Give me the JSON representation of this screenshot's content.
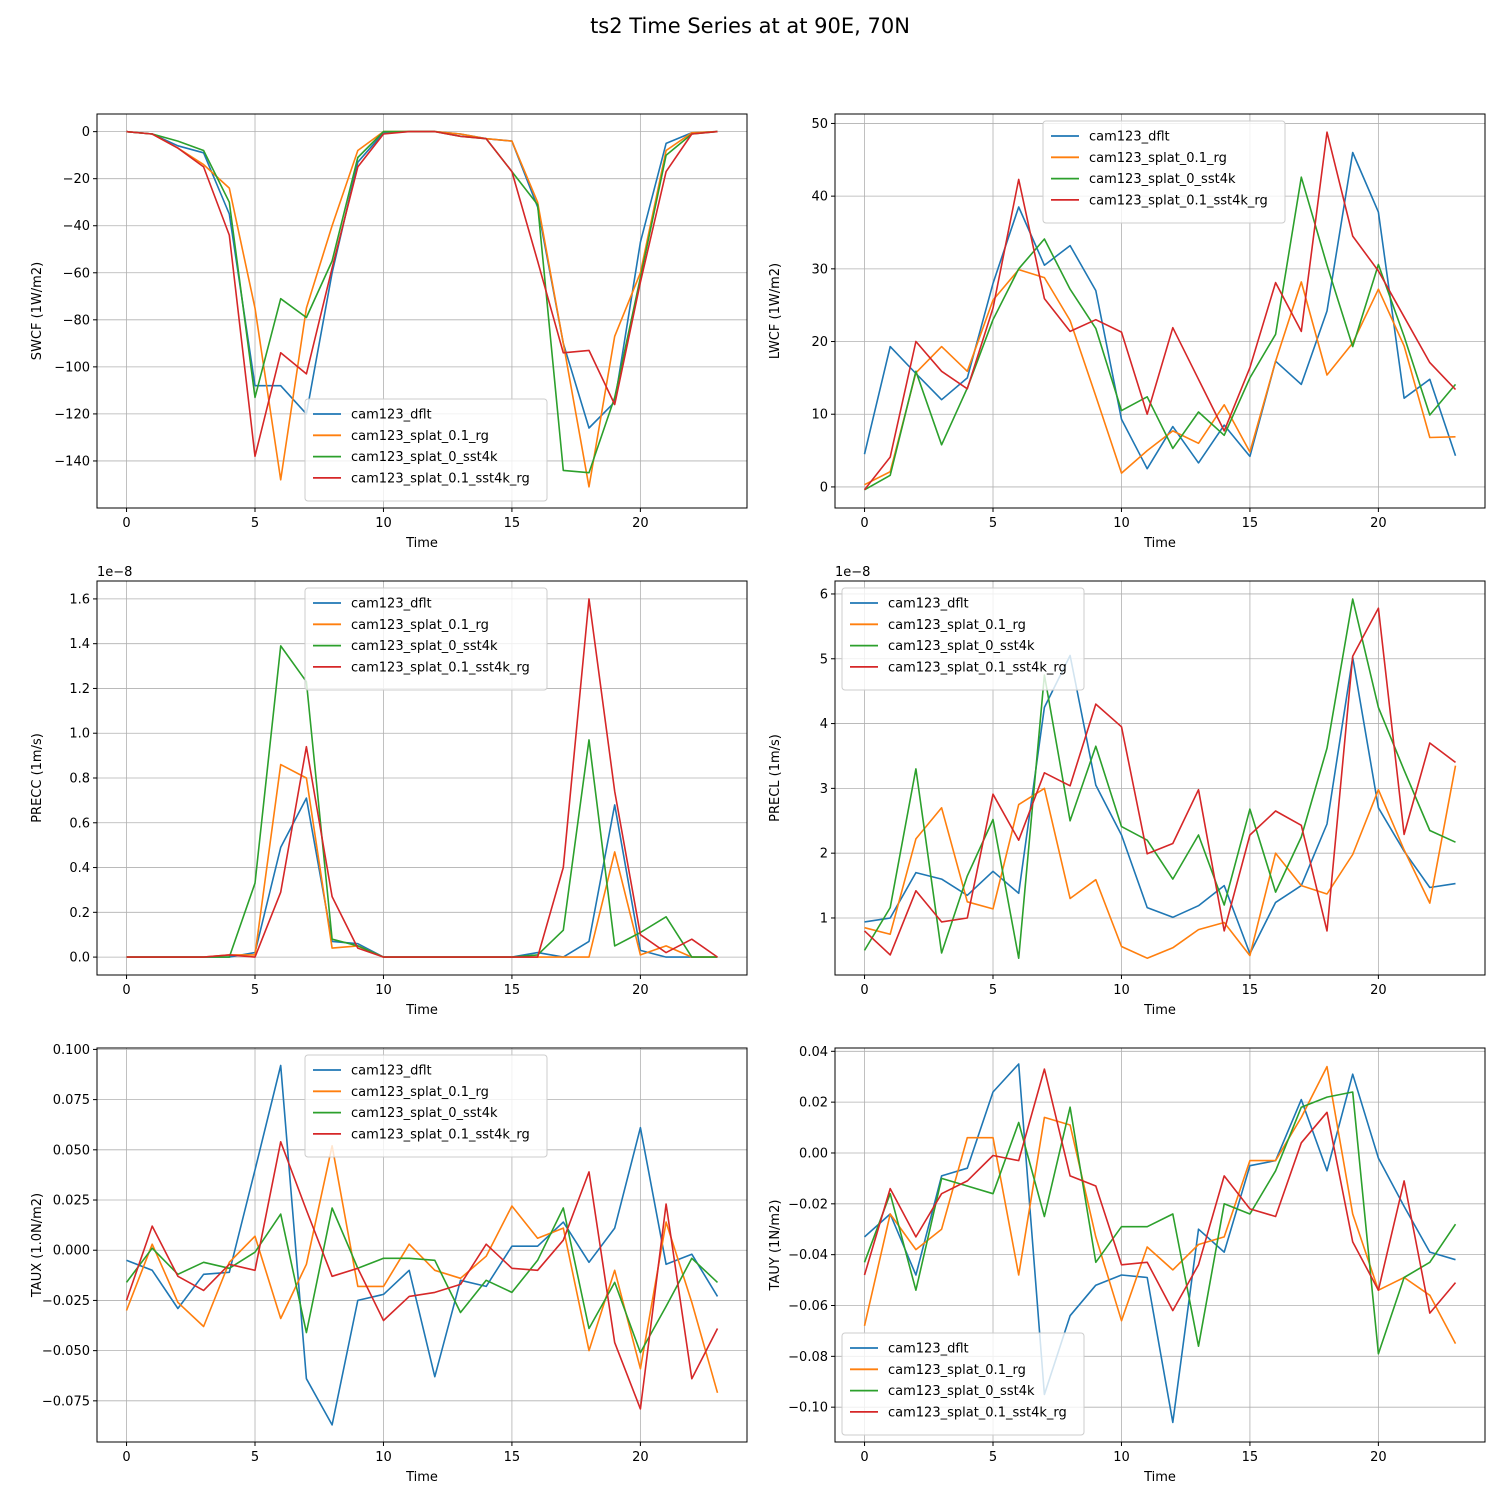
{
  "title": "ts2 Time Series at at 90E, 70N",
  "colors": {
    "cam123_dflt": "#1f77b4",
    "cam123_splat_0.1_rg": "#ff7f0e",
    "cam123_splat_0_sst4k": "#2ca02c",
    "cam123_splat_0.1_sst4k_rg": "#d62728"
  },
  "chart_data": [
    {
      "type": "line",
      "ylabel": "SWCF (1W/m2)",
      "xlabel": "Time",
      "xlim": [
        -1.15,
        24.15
      ],
      "ylim": [
        -160,
        7.5
      ],
      "xticks": [
        0,
        5,
        10,
        15,
        20
      ],
      "yticks": [
        0,
        -20,
        -40,
        -60,
        -80,
        -100,
        -120,
        -140
      ],
      "ytick_labels": [
        "0",
        "−20",
        "−40",
        "−60",
        "−80",
        "−100",
        "−120",
        "−140"
      ],
      "exponent": "",
      "grid": true,
      "legend": "lower-center",
      "x": [
        0,
        1,
        2,
        3,
        4,
        5,
        6,
        7,
        8,
        9,
        10,
        11,
        12,
        13,
        14,
        15,
        16,
        17,
        18,
        19,
        20,
        21,
        22,
        23
      ],
      "series": [
        {
          "name": "cam123_dflt",
          "values": [
            0,
            -1,
            -6,
            -9,
            -35,
            -108,
            -108,
            -120,
            -60,
            -13,
            -0.5,
            0,
            0,
            -1,
            -3,
            -4,
            -32,
            -90,
            -126,
            -115,
            -47,
            -5,
            -0.5,
            0
          ]
        },
        {
          "name": "cam123_splat_0.1_rg",
          "values": [
            0,
            -1,
            -7,
            -14,
            -24,
            -75,
            -148,
            -75,
            -40,
            -8,
            0,
            0,
            0,
            -1,
            -3,
            -4,
            -30,
            -90,
            -151,
            -87,
            -60,
            -8,
            -0.5,
            0
          ]
        },
        {
          "name": "cam123_splat_0_sst4k",
          "values": [
            0,
            -1,
            -4,
            -8,
            -30,
            -113,
            -71,
            -79,
            -55,
            -11,
            0,
            0,
            0,
            -2,
            -3,
            -17,
            -31,
            -144,
            -145,
            -113,
            -62,
            -10,
            -1,
            0
          ]
        },
        {
          "name": "cam123_splat_0.1_sst4k_rg",
          "values": [
            0,
            -1,
            -7,
            -15,
            -44,
            -138,
            -94,
            -103,
            -58,
            -15,
            -1,
            0,
            0,
            -2,
            -3,
            -17,
            -55,
            -94,
            -93,
            -116,
            -64,
            -17,
            -1,
            0
          ]
        }
      ]
    },
    {
      "type": "line",
      "ylabel": "LWCF (1W/m2)",
      "xlabel": "Time",
      "xlim": [
        -1.15,
        24.15
      ],
      "ylim": [
        -2.9,
        51.3
      ],
      "xticks": [
        0,
        5,
        10,
        15,
        20
      ],
      "yticks": [
        0,
        10,
        20,
        30,
        40,
        50
      ],
      "ytick_labels": [
        "0",
        "10",
        "20",
        "30",
        "40",
        "50"
      ],
      "exponent": "",
      "grid": true,
      "legend": "upper-center",
      "x": [
        0,
        1,
        2,
        3,
        4,
        5,
        6,
        7,
        8,
        9,
        10,
        11,
        12,
        13,
        14,
        15,
        16,
        17,
        18,
        19,
        20,
        21,
        22,
        23
      ],
      "series": [
        {
          "name": "cam123_dflt",
          "values": [
            4.5,
            19.3,
            15.6,
            12,
            15,
            28,
            38.5,
            30.5,
            33.2,
            27,
            9.3,
            2.5,
            8.3,
            3.3,
            8.5,
            4.2,
            17.3,
            14.1,
            24.2,
            46,
            37.8,
            12.2,
            14.8,
            4.3
          ]
        },
        {
          "name": "cam123_splat_0.1_rg",
          "values": [
            0.3,
            2.1,
            15.7,
            19.3,
            15.9,
            25.7,
            29.9,
            28.8,
            22.9,
            12.5,
            1.9,
            5,
            7.7,
            6,
            11.3,
            4.8,
            17.3,
            28.2,
            15.4,
            19.8,
            27.2,
            19.4,
            6.8,
            6.9
          ]
        },
        {
          "name": "cam123_splat_0_sst4k",
          "values": [
            -0.4,
            1.6,
            15.9,
            5.8,
            13.6,
            23,
            30,
            34.1,
            27.2,
            21.8,
            10.5,
            12.4,
            5.3,
            10.3,
            7.1,
            15,
            21,
            42.6,
            30.5,
            19.3,
            30.6,
            20.7,
            9.9,
            14.1
          ]
        },
        {
          "name": "cam123_splat_0.1_sst4k_rg",
          "values": [
            -0.4,
            4.1,
            20,
            15.9,
            13.5,
            24.6,
            42.3,
            25.9,
            21.4,
            23,
            21.3,
            10,
            21.9,
            14.8,
            7.7,
            16.4,
            28.1,
            21.4,
            48.8,
            34.5,
            29.7,
            23.4,
            17.1,
            13.4
          ]
        }
      ]
    },
    {
      "type": "line",
      "ylabel": "PRECC (1m/s)",
      "xlabel": "Time",
      "xlim": [
        -1.15,
        24.15
      ],
      "ylim": [
        -0.08,
        1.68
      ],
      "xticks": [
        0,
        5,
        10,
        15,
        20
      ],
      "yticks": [
        0,
        0.2,
        0.4,
        0.6,
        0.8,
        1.0,
        1.2,
        1.4,
        1.6
      ],
      "ytick_labels": [
        "0.0",
        "0.2",
        "0.4",
        "0.6",
        "0.8",
        "1.0",
        "1.2",
        "1.4",
        "1.6"
      ],
      "exponent": "1e−8",
      "grid": true,
      "legend": "upper-center",
      "x": [
        0,
        1,
        2,
        3,
        4,
        5,
        6,
        7,
        8,
        9,
        10,
        11,
        12,
        13,
        14,
        15,
        16,
        17,
        18,
        19,
        20,
        21,
        22,
        23
      ],
      "series": [
        {
          "name": "cam123_dflt",
          "values": [
            0,
            0,
            0,
            0,
            0,
            0.02,
            0.49,
            0.71,
            0.07,
            0.06,
            0,
            0,
            0,
            0,
            0,
            0,
            0.02,
            0,
            0.07,
            0.68,
            0.03,
            0,
            0,
            0
          ]
        },
        {
          "name": "cam123_splat_0.1_rg",
          "values": [
            0,
            0,
            0,
            0,
            0.01,
            0.01,
            0.86,
            0.8,
            0.04,
            0.05,
            0,
            0,
            0,
            0,
            0,
            0,
            0,
            0,
            0,
            0.47,
            0.01,
            0.05,
            0,
            0
          ]
        },
        {
          "name": "cam123_splat_0_sst4k",
          "values": [
            0,
            0,
            0,
            0,
            0,
            0.33,
            1.39,
            1.23,
            0.08,
            0.05,
            0,
            0,
            0,
            0,
            0,
            0,
            0.01,
            0.12,
            0.97,
            0.05,
            0.11,
            0.18,
            0,
            0
          ]
        },
        {
          "name": "cam123_splat_0.1_sst4k_rg",
          "values": [
            0,
            0,
            0,
            0,
            0.01,
            0,
            0.29,
            0.94,
            0.27,
            0.04,
            0,
            0,
            0,
            0,
            0,
            0,
            0,
            0.4,
            1.6,
            0.74,
            0.1,
            0.02,
            0.08,
            0
          ]
        }
      ]
    },
    {
      "type": "line",
      "ylabel": "PRECL (1m/s)",
      "xlabel": "Time",
      "xlim": [
        -1.15,
        24.15
      ],
      "ylim": [
        0.12,
        6.2
      ],
      "xticks": [
        0,
        5,
        10,
        15,
        20
      ],
      "yticks": [
        1,
        2,
        3,
        4,
        5,
        6
      ],
      "ytick_labels": [
        "1",
        "2",
        "3",
        "4",
        "5",
        "6"
      ],
      "exponent": "1e−8",
      "grid": true,
      "legend": "upper-left",
      "x": [
        0,
        1,
        2,
        3,
        4,
        5,
        6,
        7,
        8,
        9,
        10,
        11,
        12,
        13,
        14,
        15,
        16,
        17,
        18,
        19,
        20,
        21,
        22,
        23
      ],
      "series": [
        {
          "name": "cam123_dflt",
          "values": [
            0.94,
            1,
            1.7,
            1.6,
            1.35,
            1.72,
            1.38,
            4.25,
            5.05,
            3.05,
            2.28,
            1.16,
            1.01,
            1.19,
            1.5,
            0.45,
            1.24,
            1.5,
            2.45,
            5.02,
            2.7,
            2.03,
            1.47,
            1.53
          ]
        },
        {
          "name": "cam123_splat_0.1_rg",
          "values": [
            0.85,
            0.75,
            2.22,
            2.7,
            1.25,
            1.14,
            2.75,
            3,
            1.3,
            1.59,
            0.56,
            0.38,
            0.54,
            0.82,
            0.93,
            0.42,
            2,
            1.5,
            1.37,
            1.98,
            2.98,
            2.05,
            1.23,
            3.35
          ]
        },
        {
          "name": "cam123_splat_0_sst4k",
          "values": [
            0.5,
            1.16,
            3.3,
            0.46,
            1.65,
            2.52,
            0.38,
            4.75,
            2.5,
            3.65,
            2.41,
            2.2,
            1.6,
            2.28,
            1.2,
            2.68,
            1.4,
            2.25,
            3.62,
            5.92,
            4.25,
            3.28,
            2.35,
            2.17
          ]
        },
        {
          "name": "cam123_splat_0.1_sst4k_rg",
          "values": [
            0.8,
            0.43,
            1.42,
            0.94,
            1,
            2.91,
            2.2,
            3.24,
            3.04,
            4.3,
            3.95,
            1.99,
            2.15,
            2.98,
            0.8,
            2.28,
            2.65,
            2.43,
            0.8,
            5.04,
            5.78,
            2.29,
            3.7,
            3.4
          ]
        }
      ]
    },
    {
      "type": "line",
      "ylabel": "TAUX (1.0N/m2)",
      "xlabel": "Time",
      "xlim": [
        -1.15,
        24.15
      ],
      "ylim": [
        -0.0955,
        0.1007
      ],
      "xticks": [
        0,
        5,
        10,
        15,
        20
      ],
      "yticks": [
        0.1,
        0.075,
        0.05,
        0.025,
        0,
        -0.025,
        -0.05,
        -0.075
      ],
      "ytick_labels": [
        "0.100",
        "0.075",
        "0.050",
        "0.025",
        "0.000",
        "−0.025",
        "−0.050",
        "−0.075"
      ],
      "exponent": "",
      "grid": true,
      "legend": "upper-center",
      "x": [
        0,
        1,
        2,
        3,
        4,
        5,
        6,
        7,
        8,
        9,
        10,
        11,
        12,
        13,
        14,
        15,
        16,
        17,
        18,
        19,
        20,
        21,
        22,
        23
      ],
      "series": [
        {
          "name": "cam123_dflt",
          "values": [
            -0.005,
            -0.01,
            -0.029,
            -0.012,
            -0.011,
            0.04,
            0.092,
            -0.064,
            -0.087,
            -0.025,
            -0.022,
            -0.01,
            -0.063,
            -0.015,
            -0.018,
            0.002,
            0.002,
            0.014,
            -0.006,
            0.011,
            0.061,
            -0.007,
            -0.002,
            -0.023
          ]
        },
        {
          "name": "cam123_splat_0.1_rg",
          "values": [
            -0.03,
            0.003,
            -0.026,
            -0.038,
            -0.006,
            0.007,
            -0.034,
            -0.007,
            0.052,
            -0.018,
            -0.018,
            0.003,
            -0.01,
            -0.014,
            -0.003,
            0.022,
            0.006,
            0.011,
            -0.05,
            -0.01,
            -0.059,
            0.014,
            -0.026,
            -0.071
          ]
        },
        {
          "name": "cam123_splat_0_sst4k",
          "values": [
            -0.016,
            0.001,
            -0.012,
            -0.006,
            -0.009,
            -0.001,
            0.018,
            -0.041,
            0.021,
            -0.009,
            -0.004,
            -0.004,
            -0.005,
            -0.031,
            -0.015,
            -0.021,
            -0.005,
            0.021,
            -0.039,
            -0.016,
            -0.051,
            -0.028,
            -0.004,
            -0.016
          ]
        },
        {
          "name": "cam123_splat_0.1_sst4k_rg",
          "values": [
            -0.025,
            0.012,
            -0.013,
            -0.02,
            -0.007,
            -0.01,
            0.054,
            0.02,
            -0.013,
            -0.009,
            -0.035,
            -0.023,
            -0.021,
            -0.017,
            0.003,
            -0.009,
            -0.01,
            0.005,
            0.039,
            -0.046,
            -0.079,
            0.023,
            -0.064,
            -0.039
          ]
        }
      ]
    },
    {
      "type": "line",
      "ylabel": "TAUY (1N/m2)",
      "xlabel": "Time",
      "xlim": [
        -1.15,
        24.15
      ],
      "ylim": [
        -0.1137,
        0.0413
      ],
      "xticks": [
        0,
        5,
        10,
        15,
        20
      ],
      "yticks": [
        0.04,
        0.02,
        0,
        -0.02,
        -0.04,
        -0.06,
        -0.08,
        -0.1
      ],
      "ytick_labels": [
        "0.04",
        "0.02",
        "0.00",
        "−0.02",
        "−0.04",
        "−0.06",
        "−0.08",
        "−0.10"
      ],
      "exponent": "",
      "grid": true,
      "legend": "lower-left",
      "x": [
        0,
        1,
        2,
        3,
        4,
        5,
        6,
        7,
        8,
        9,
        10,
        11,
        12,
        13,
        14,
        15,
        16,
        17,
        18,
        19,
        20,
        21,
        22,
        23
      ],
      "series": [
        {
          "name": "cam123_dflt",
          "values": [
            -0.033,
            -0.024,
            -0.048,
            -0.009,
            -0.006,
            0.024,
            0.035,
            -0.095,
            -0.064,
            -0.052,
            -0.048,
            -0.049,
            -0.106,
            -0.03,
            -0.039,
            -0.005,
            -0.003,
            0.021,
            -0.007,
            0.031,
            -0.002,
            -0.021,
            -0.039,
            -0.042
          ]
        },
        {
          "name": "cam123_splat_0.1_rg",
          "values": [
            -0.068,
            -0.024,
            -0.038,
            -0.03,
            0.006,
            0.006,
            -0.048,
            0.014,
            0.011,
            -0.033,
            -0.066,
            -0.037,
            -0.046,
            -0.036,
            -0.033,
            -0.003,
            -0.003,
            0.014,
            0.034,
            -0.024,
            -0.054,
            -0.049,
            -0.056,
            -0.075
          ]
        },
        {
          "name": "cam123_splat_0_sst4k",
          "values": [
            -0.043,
            -0.016,
            -0.054,
            -0.01,
            -0.013,
            -0.016,
            0.012,
            -0.025,
            0.018,
            -0.043,
            -0.029,
            -0.029,
            -0.024,
            -0.076,
            -0.02,
            -0.024,
            -0.007,
            0.018,
            0.022,
            0.024,
            -0.079,
            -0.049,
            -0.043,
            -0.028
          ]
        },
        {
          "name": "cam123_splat_0.1_sst4k_rg",
          "values": [
            -0.048,
            -0.014,
            -0.033,
            -0.016,
            -0.011,
            -0.001,
            -0.003,
            0.033,
            -0.009,
            -0.013,
            -0.044,
            -0.043,
            -0.062,
            -0.044,
            -0.009,
            -0.022,
            -0.025,
            0.004,
            0.016,
            -0.035,
            -0.054,
            -0.011,
            -0.063,
            -0.051
          ]
        }
      ]
    }
  ]
}
